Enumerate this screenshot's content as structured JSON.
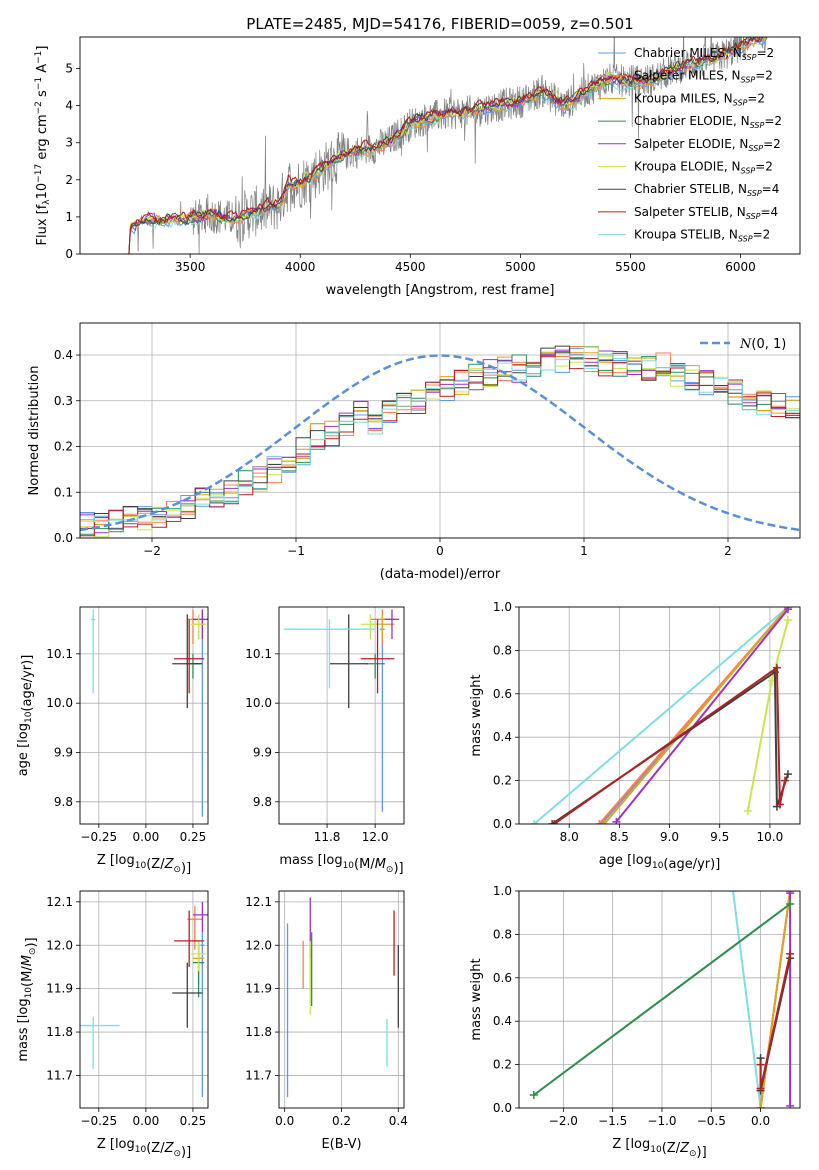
{
  "figure_title": "PLATE=2485, MJD=54176, FIBERID=0059, z=0.501",
  "colors": {
    "Chabrier MILES": "#6495ed",
    "Salpeter MILES": "#ff7f50",
    "Kroupa MILES": "#daa520",
    "Chabrier ELODIE": "#2e8b57",
    "Salpeter ELODIE": "#9932cc",
    "Kroupa ELODIE": "#c8e650",
    "Chabrier STELIB": "#404040",
    "Salpeter STELIB": "#b22222",
    "Kroupa STELIB": "#80dde0",
    "data": "#808080",
    "normal": "#5b8edb",
    "pink": "#ff88cc"
  },
  "chart_data": [
    {
      "id": "spectrum",
      "type": "line",
      "title": "",
      "xlabel": "wavelength [Angstrom, rest frame]",
      "ylabel_parts": [
        "Flux [f",
        "λ",
        "10",
        "−17",
        " erg cm",
        "−2",
        " s",
        "−1",
        " A",
        "−1",
        "]"
      ],
      "xlim": [
        3000,
        6270
      ],
      "ylim": [
        0,
        5.85
      ],
      "xticks": [
        3500,
        4000,
        4500,
        5000,
        5500,
        6000
      ],
      "yticks": [
        0,
        1,
        2,
        3,
        4,
        5
      ],
      "legend_position": "upper-right",
      "legend": [
        {
          "name": "Chabrier MILES",
          "nssp": "2"
        },
        {
          "name": "Salpeter MILES",
          "nssp": "2"
        },
        {
          "name": "Kroupa MILES",
          "nssp": "2"
        },
        {
          "name": "Chabrier ELODIE",
          "nssp": "2"
        },
        {
          "name": "Salpeter ELODIE",
          "nssp": "2"
        },
        {
          "name": "Kroupa ELODIE",
          "nssp": "2"
        },
        {
          "name": "Chabrier STELIB",
          "nssp": "4"
        },
        {
          "name": "Salpeter STELIB",
          "nssp": "4"
        },
        {
          "name": "Kroupa STELIB",
          "nssp": "2"
        }
      ],
      "model_trend": [
        [
          3200,
          0.0
        ],
        [
          3215,
          0.0
        ],
        [
          3230,
          0.75
        ],
        [
          3300,
          0.9
        ],
        [
          3400,
          0.9
        ],
        [
          3500,
          0.95
        ],
        [
          3600,
          1.05
        ],
        [
          3700,
          0.95
        ],
        [
          3800,
          1.15
        ],
        [
          3900,
          1.3
        ],
        [
          3950,
          1.9
        ],
        [
          4000,
          1.9
        ],
        [
          4100,
          2.3
        ],
        [
          4200,
          2.7
        ],
        [
          4300,
          2.8
        ],
        [
          4400,
          3.0
        ],
        [
          4500,
          3.5
        ],
        [
          4600,
          3.7
        ],
        [
          4700,
          3.8
        ],
        [
          4800,
          3.85
        ],
        [
          4900,
          4.0
        ],
        [
          5000,
          4.1
        ],
        [
          5100,
          4.4
        ],
        [
          5200,
          4.0
        ],
        [
          5300,
          4.4
        ],
        [
          5400,
          4.7
        ],
        [
          5500,
          4.65
        ],
        [
          5600,
          4.7
        ],
        [
          5700,
          5.0
        ],
        [
          5800,
          5.15
        ],
        [
          5900,
          5.3
        ],
        [
          6000,
          5.6
        ],
        [
          6100,
          5.85
        ],
        [
          6120,
          5.85
        ]
      ]
    },
    {
      "id": "residuals",
      "type": "histogram",
      "xlabel": "(data-model)/error",
      "ylabel": "Normed distribution",
      "xlim": [
        -2.5,
        2.5
      ],
      "ylim": [
        0,
        0.47
      ],
      "xticks": [
        -2,
        -1,
        0,
        1,
        2
      ],
      "yticks": [
        0.0,
        0.1,
        0.2,
        0.3,
        0.4
      ],
      "legend_position": "upper-right",
      "legend_label": "N(0,1)",
      "bin_width": 0.1,
      "bins_start": -2.5,
      "envelope": [
        0.03,
        0.03,
        0.04,
        0.04,
        0.045,
        0.05,
        0.06,
        0.07,
        0.08,
        0.09,
        0.1,
        0.12,
        0.13,
        0.15,
        0.17,
        0.19,
        0.22,
        0.23,
        0.25,
        0.27,
        0.25,
        0.28,
        0.29,
        0.3,
        0.32,
        0.33,
        0.34,
        0.35,
        0.36,
        0.37,
        0.37,
        0.38,
        0.39,
        0.39,
        0.4,
        0.39,
        0.38,
        0.38,
        0.37,
        0.37,
        0.38,
        0.36,
        0.35,
        0.34,
        0.34,
        0.32,
        0.31,
        0.3,
        0.29,
        0.28,
        0.27,
        0.26,
        0.24,
        0.23,
        0.22,
        0.21,
        0.2,
        0.19,
        0.18,
        0.18,
        0.17,
        0.16,
        0.15,
        0.14,
        0.13,
        0.12,
        0.11,
        0.1,
        0.09,
        0.09,
        0.09,
        0.08,
        0.08,
        0.08,
        0.07,
        0.07,
        0.07,
        0.06,
        0.06,
        0.05
      ]
    },
    {
      "id": "age_vs_Z",
      "type": "scatter",
      "xlabel": "Z [log10(Z/Z⊙)]",
      "ylabel": "age  [log10(age/yr)]",
      "xlim": [
        -0.35,
        0.33
      ],
      "ylim": [
        9.755,
        10.195
      ],
      "xticks": [
        -0.25,
        0.0,
        0.25
      ],
      "xtick_labels": [
        "−0.25",
        "0.00",
        "0.25"
      ],
      "yticks": [
        9.8,
        9.9,
        10.0,
        10.1
      ],
      "points": [
        {
          "name": "Chabrier MILES",
          "x": 0.3,
          "y": 10.17,
          "xerr": 0.01,
          "yerr": [
            0.4,
            0.02
          ]
        },
        {
          "name": "Salpeter MILES",
          "x": 0.25,
          "y": 10.17,
          "xerr": 0.03,
          "yerr": [
            0.05,
            0.02
          ]
        },
        {
          "name": "Kroupa MILES",
          "x": 0.28,
          "y": 10.16,
          "xerr": 0.04,
          "yerr": [
            0.03,
            0.02
          ]
        },
        {
          "name": "Chabrier ELODIE",
          "x": 0.25,
          "y": 10.08,
          "xerr": 0.04,
          "yerr": [
            0.03,
            0.02
          ]
        },
        {
          "name": "Salpeter ELODIE",
          "x": 0.3,
          "y": 10.17,
          "xerr": 0.05,
          "yerr": [
            0.04,
            0.02
          ]
        },
        {
          "name": "Kroupa ELODIE",
          "x": 0.28,
          "y": 10.16,
          "xerr": 0.04,
          "yerr": [
            0.03,
            0.02
          ]
        },
        {
          "name": "Chabrier STELIB",
          "x": 0.22,
          "y": 10.08,
          "xerr": 0.08,
          "yerr": [
            0.09,
            0.1
          ]
        },
        {
          "name": "Salpeter STELIB",
          "x": 0.23,
          "y": 10.09,
          "xerr": 0.08,
          "yerr": [
            0.07,
            0.08
          ]
        },
        {
          "name": "Kroupa STELIB",
          "x": -0.28,
          "y": 10.17,
          "xerr": 0.01,
          "yerr": [
            0.15,
            0.02
          ]
        }
      ]
    },
    {
      "id": "age_vs_mass",
      "type": "scatter",
      "xlabel": "mass [log10(M/M⊙)]",
      "ylabel": "",
      "xlim": [
        11.6,
        12.12
      ],
      "ylim": [
        9.755,
        10.195
      ],
      "xticks": [
        11.8,
        12.0
      ],
      "yticks": [
        9.8,
        9.9,
        10.0,
        10.1
      ],
      "points": [
        {
          "name": "Chabrier MILES",
          "x": 12.03,
          "y": 10.15,
          "xerr": 0.01,
          "yerr": [
            0.37,
            0.02
          ]
        },
        {
          "name": "Salpeter MILES",
          "x": 12.03,
          "y": 10.17,
          "xerr": 0.05,
          "yerr": [
            0.05,
            0.02
          ]
        },
        {
          "name": "Kroupa MILES",
          "x": 12.03,
          "y": 10.16,
          "xerr": 0.05,
          "yerr": [
            0.03,
            0.02
          ]
        },
        {
          "name": "Chabrier ELODIE",
          "x": 12.0,
          "y": 10.08,
          "xerr": 0.04,
          "yerr": [
            0.03,
            0.02
          ]
        },
        {
          "name": "Salpeter ELODIE",
          "x": 12.07,
          "y": 10.17,
          "xerr": 0.03,
          "yerr": [
            0.04,
            0.02
          ]
        },
        {
          "name": "Kroupa ELODIE",
          "x": 11.98,
          "y": 10.16,
          "xerr": 0.04,
          "yerr": [
            0.03,
            0.02
          ]
        },
        {
          "name": "Chabrier STELIB",
          "x": 11.89,
          "y": 10.08,
          "xerr": 0.08,
          "yerr": [
            0.09,
            0.1
          ]
        },
        {
          "name": "Salpeter STELIB",
          "x": 12.01,
          "y": 10.09,
          "xerr": 0.07,
          "yerr": [
            0.07,
            0.08
          ]
        },
        {
          "name": "Kroupa STELIB",
          "x": 11.81,
          "y": 10.15,
          "xerr": 0.19,
          "yerr": [
            0.12,
            0.02
          ]
        }
      ]
    },
    {
      "id": "weight_vs_age",
      "type": "line",
      "xlabel": "age  [log10(age/yr)]",
      "ylabel": "mass weight",
      "xlim": [
        7.5,
        10.3
      ],
      "ylim": [
        0,
        1
      ],
      "xticks": [
        8.0,
        8.5,
        9.0,
        9.5,
        10.0
      ],
      "yticks": [
        0.0,
        0.2,
        0.4,
        0.6,
        0.8,
        1.0
      ],
      "series": [
        {
          "name": "Kroupa STELIB",
          "x": [
            7.65,
            10.18
          ],
          "y": [
            0.0,
            1.0
          ]
        },
        {
          "name": "Chabrier MILES",
          "x": [
            8.32,
            10.18
          ],
          "y": [
            0.0,
            1.0
          ]
        },
        {
          "name": "Salpeter MILES",
          "x": [
            8.3,
            10.18
          ],
          "y": [
            0.0,
            1.0
          ]
        },
        {
          "name": "Kroupa MILES",
          "x": [
            8.35,
            10.18
          ],
          "y": [
            0.0,
            1.0
          ]
        },
        {
          "name": "Salpeter ELODIE",
          "x": [
            8.47,
            10.18
          ],
          "y": [
            0.01,
            0.99
          ]
        },
        {
          "name": "Kroupa ELODIE",
          "x": [
            9.78,
            10.02,
            10.18
          ],
          "y": [
            0.06,
            0.66,
            0.94
          ]
        },
        {
          "name": "Chabrier STELIB",
          "x": [
            7.83,
            10.05,
            10.07,
            10.18
          ],
          "y": [
            0.0,
            0.7,
            0.08,
            0.23
          ]
        },
        {
          "name": "Salpeter STELIB",
          "x": [
            7.85,
            10.07,
            10.1,
            10.15
          ],
          "y": [
            0.0,
            0.72,
            0.09,
            0.2
          ]
        }
      ]
    },
    {
      "id": "mass_vs_Z",
      "type": "scatter",
      "xlabel": "Z [log10(Z/Z⊙)]",
      "ylabel": "mass [log10(M/M⊙)]",
      "xlim": [
        -0.35,
        0.33
      ],
      "ylim": [
        11.625,
        12.125
      ],
      "xticks": [
        -0.25,
        0.0,
        0.25
      ],
      "xtick_labels": [
        "−0.25",
        "0.00",
        "0.25"
      ],
      "yticks": [
        11.7,
        11.8,
        11.9,
        12.0,
        12.1
      ],
      "points": [
        {
          "name": "Chabrier MILES",
          "x": 0.3,
          "y": 12.0,
          "xerr": 0.01,
          "yerr": [
            0.35,
            0.03
          ]
        },
        {
          "name": "Salpeter MILES",
          "x": 0.26,
          "y": 12.06,
          "xerr": 0.04,
          "yerr": [
            0.07,
            0.03
          ]
        },
        {
          "name": "Kroupa MILES",
          "x": 0.28,
          "y": 11.97,
          "xerr": 0.03,
          "yerr": [
            0.06,
            0.03
          ]
        },
        {
          "name": "Chabrier ELODIE",
          "x": 0.28,
          "y": 11.96,
          "xerr": 0.03,
          "yerr": [
            0.08,
            0.05
          ]
        },
        {
          "name": "Salpeter ELODIE",
          "x": 0.3,
          "y": 12.07,
          "xerr": 0.05,
          "yerr": [
            0.04,
            0.03
          ]
        },
        {
          "name": "Kroupa ELODIE",
          "x": 0.28,
          "y": 11.98,
          "xerr": 0.04,
          "yerr": [
            0.04,
            0.03
          ]
        },
        {
          "name": "Chabrier STELIB",
          "x": 0.22,
          "y": 11.89,
          "xerr": 0.08,
          "yerr": [
            0.08,
            0.07
          ]
        },
        {
          "name": "Salpeter STELIB",
          "x": 0.23,
          "y": 12.01,
          "xerr": 0.08,
          "yerr": [
            0.06,
            0.07
          ]
        },
        {
          "name": "Kroupa STELIB",
          "x": -0.28,
          "y": 11.815,
          "xerr": 0.14,
          "yerr": [
            0.1,
            0.02
          ]
        }
      ]
    },
    {
      "id": "mass_vs_ebv",
      "type": "scatter",
      "xlabel": "E(B-V)",
      "ylabel": "",
      "xlim": [
        -0.02,
        0.42
      ],
      "ylim": [
        11.625,
        12.125
      ],
      "xticks": [
        0.0,
        0.2,
        0.4
      ],
      "yticks": [
        11.7,
        11.8,
        11.9,
        12.0,
        12.1
      ],
      "points": [
        {
          "name": "Chabrier MILES",
          "x": 0.01,
          "y": 11.85,
          "xerr": 0.0,
          "yerr": [
            0.2,
            0.2
          ]
        },
        {
          "name": "Salpeter MILES",
          "x": 0.065,
          "y": 11.97,
          "xerr": 0.0,
          "yerr": [
            0.07,
            0.04
          ]
        },
        {
          "name": "Kroupa MILES",
          "x": 0.09,
          "y": 11.97,
          "xerr": 0.0,
          "yerr": [
            0.06,
            0.03
          ]
        },
        {
          "name": "Chabrier ELODIE",
          "x": 0.095,
          "y": 11.96,
          "xerr": 0.0,
          "yerr": [
            0.1,
            0.07
          ]
        },
        {
          "name": "Salpeter ELODIE",
          "x": 0.09,
          "y": 12.03,
          "xerr": 0.0,
          "yerr": [
            0.06,
            0.08
          ]
        },
        {
          "name": "Kroupa ELODIE",
          "x": 0.09,
          "y": 11.98,
          "xerr": 0.0,
          "yerr": [
            0.14,
            0.03
          ]
        },
        {
          "name": "Chabrier STELIB",
          "x": 0.4,
          "y": 11.9,
          "xerr": 0.0,
          "yerr": [
            0.09,
            0.1
          ]
        },
        {
          "name": "Salpeter STELIB",
          "x": 0.385,
          "y": 12.0,
          "xerr": 0.0,
          "yerr": [
            0.07,
            0.08
          ]
        },
        {
          "name": "Kroupa STELIB",
          "x": 0.36,
          "y": 11.78,
          "xerr": 0.0,
          "yerr": [
            0.06,
            0.05
          ]
        }
      ]
    },
    {
      "id": "weight_vs_Z",
      "type": "line",
      "xlabel": "Z [log10(Z/Z⊙)]",
      "ylabel": "mass weight",
      "xlim": [
        -2.45,
        0.4
      ],
      "ylim": [
        0,
        1
      ],
      "xticks": [
        -2.0,
        -1.5,
        -1.0,
        -0.5,
        0.0
      ],
      "xtick_labels": [
        "−2.0",
        "−1.5",
        "−1.0",
        "−0.5",
        "0.0"
      ],
      "yticks": [
        0.0,
        0.2,
        0.4,
        0.6,
        0.8,
        1.0
      ],
      "series": [
        {
          "name": "Kroupa STELIB",
          "x": [
            -0.28,
            0.0
          ],
          "y": [
            1.0,
            0.0
          ]
        },
        {
          "name": "Chabrier MILES",
          "x": [
            0.0,
            0.3
          ],
          "y": [
            0.0,
            1.0
          ]
        },
        {
          "name": "Salpeter MILES",
          "x": [
            0.0,
            0.3
          ],
          "y": [
            0.0,
            1.0
          ]
        },
        {
          "name": "Kroupa MILES",
          "x": [
            0.0,
            0.3
          ],
          "y": [
            0.0,
            1.0
          ]
        },
        {
          "name": "Salpeter ELODIE",
          "x": [
            0.3,
            0.3
          ],
          "y": [
            0.01,
            0.99
          ]
        },
        {
          "name": "Kroupa ELODIE",
          "x": [
            -2.3,
            0.3
          ],
          "y": [
            0.06,
            0.94
          ]
        },
        {
          "name": "Chabrier ELODIE",
          "x": [
            -2.3,
            0.3
          ],
          "y": [
            0.06,
            0.94
          ]
        },
        {
          "name": "Chabrier STELIB",
          "x": [
            0.0,
            0.0,
            0.3
          ],
          "y": [
            0.23,
            0.08,
            0.69
          ]
        },
        {
          "name": "Salpeter STELIB",
          "x": [
            0.0,
            0.0,
            0.3
          ],
          "y": [
            0.2,
            0.09,
            0.71
          ]
        }
      ]
    }
  ]
}
